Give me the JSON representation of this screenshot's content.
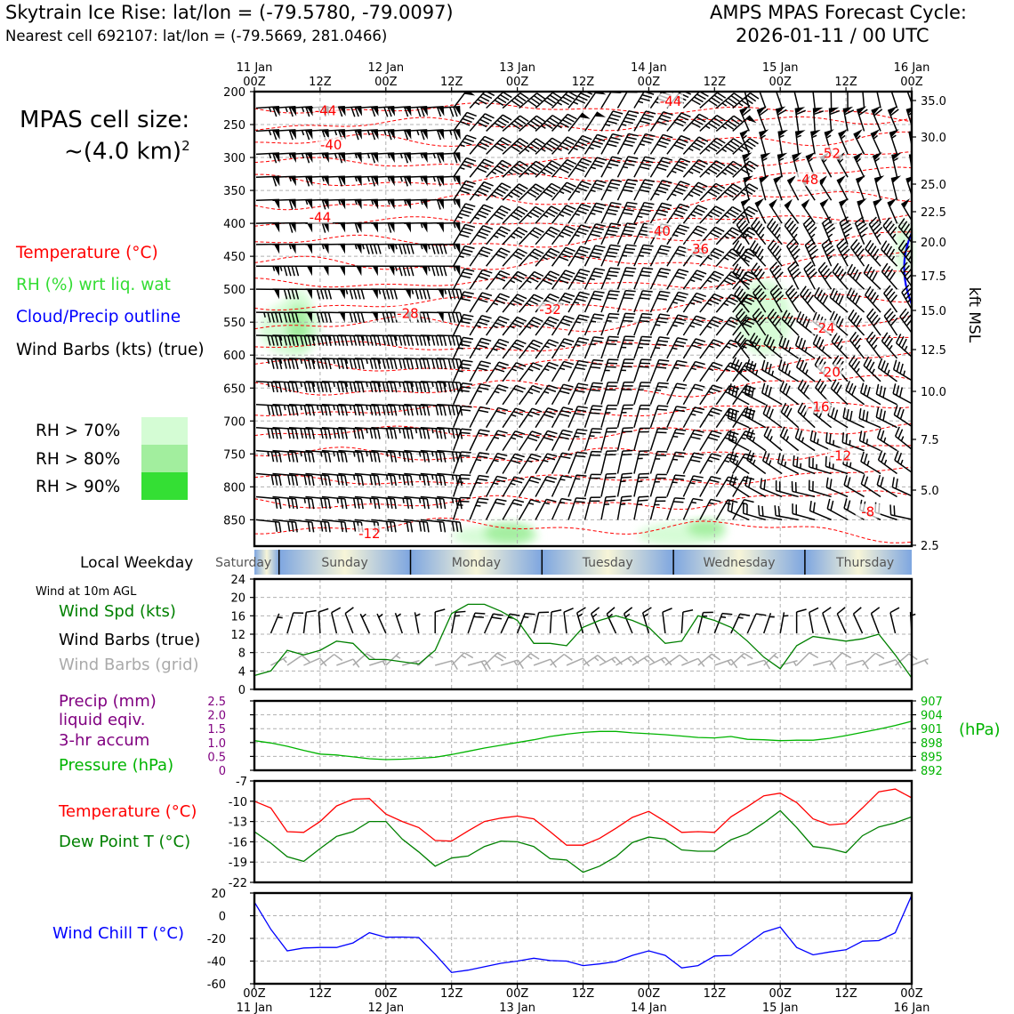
{
  "header": {
    "left_line1": "Skytrain Ice Rise: lat/lon = (-79.5780, -79.0097)",
    "left_line2": "Nearest cell 692107: lat/lon = (-79.5669, 281.0466)",
    "right_line1": "AMPS MPAS Forecast Cycle:",
    "right_line2": "2026-01-11 / 00 UTC"
  },
  "cell_size": {
    "line1": "MPAS cell size:",
    "line2": "~(4.0 km)",
    "sup": "2"
  },
  "legend": {
    "temperature": "Temperature (°C)",
    "rh": "RH (%) wrt liq. wat",
    "cloud": "Cloud/Precip outline",
    "barbs": "Wind Barbs (kts) (true)",
    "rh70": "RH > 70%",
    "rh80": "RH > 80%",
    "rh90": "RH > 90%"
  },
  "colors": {
    "temperature": "#ff0000",
    "rh_text": "#33dd33",
    "cloud": "#0000ff",
    "rh70": "#d4fcd4",
    "rh80": "#a2ee9e",
    "rh90": "#34df34",
    "wind_speed": "#008000",
    "precip": "#800080",
    "pressure": "#00b400",
    "dewpoint": "#008000",
    "windchill": "#0000ff",
    "grid_barbs": "#aaaaaa"
  },
  "time_axis": {
    "top_labels": [
      {
        "l1": "11 Jan",
        "l2": "00Z"
      },
      {
        "l1": "",
        "l2": "12Z"
      },
      {
        "l1": "12 Jan",
        "l2": "00Z"
      },
      {
        "l1": "",
        "l2": "12Z"
      },
      {
        "l1": "13 Jan",
        "l2": "00Z"
      },
      {
        "l1": "",
        "l2": "12Z"
      },
      {
        "l1": "14 Jan",
        "l2": "00Z"
      },
      {
        "l1": "",
        "l2": "12Z"
      },
      {
        "l1": "15 Jan",
        "l2": "00Z"
      },
      {
        "l1": "",
        "l2": "12Z"
      },
      {
        "l1": "16 Jan",
        "l2": "00Z"
      }
    ],
    "bottom_labels": [
      {
        "l1": "00Z",
        "l2": "11 Jan"
      },
      {
        "l1": "12Z",
        "l2": ""
      },
      {
        "l1": "00Z",
        "l2": "12 Jan"
      },
      {
        "l1": "12Z",
        "l2": ""
      },
      {
        "l1": "00Z",
        "l2": "13 Jan"
      },
      {
        "l1": "12Z",
        "l2": ""
      },
      {
        "l1": "00Z",
        "l2": "14 Jan"
      },
      {
        "l1": "12Z",
        "l2": ""
      },
      {
        "l1": "00Z",
        "l2": "15 Jan"
      },
      {
        "l1": "12Z",
        "l2": ""
      },
      {
        "l1": "00Z",
        "l2": "16 Jan"
      }
    ]
  },
  "weekday_bar": {
    "label": "Local Weekday",
    "days": [
      "Saturday",
      "Sunday",
      "Monday",
      "Tuesday",
      "Wednesday",
      "Thursday"
    ]
  },
  "wind10m": {
    "heading": "Wind at 10m AGL",
    "legend_speed": "Wind Spd (kts)",
    "legend_true": "Wind Barbs (true)",
    "legend_grid": "Wind Barbs (grid)"
  },
  "precip_panel": {
    "legend_precip": "Precip (mm)",
    "legend_liquid": "liquid eqiv.",
    "legend_accum": "3-hr accum",
    "legend_pressure": "Pressure (hPa)",
    "right_unit": "(hPa)"
  },
  "temp_panel": {
    "legend_temp": "Temperature (°C)",
    "legend_dew": "Dew Point T (°C)"
  },
  "chill_panel": {
    "legend_chill": "Wind Chill T (°C)"
  },
  "chart_data": [
    {
      "type": "contour",
      "panel": "vertical-profile",
      "x_hours": [
        0,
        120
      ],
      "y_label_right": "kft MSL",
      "y_left_ticks": [
        200,
        250,
        300,
        350,
        400,
        450,
        500,
        550,
        600,
        650,
        700,
        750,
        800,
        850
      ],
      "y_right_ticks": [
        35.0,
        30.0,
        25.0,
        22.5,
        20.0,
        17.5,
        15.0,
        12.5,
        10.0,
        7.5,
        5.0,
        2.5
      ],
      "ylim_hpa": [
        200,
        890
      ],
      "temperature_labels": [
        {
          "t": 13,
          "p": 233,
          "v": "-44"
        },
        {
          "t": 14,
          "p": 285,
          "v": "-40"
        },
        {
          "t": 12,
          "p": 395,
          "v": "-44"
        },
        {
          "t": 28,
          "p": 541,
          "v": "-28"
        },
        {
          "t": 54,
          "p": 535,
          "v": "-32"
        },
        {
          "t": 76,
          "p": 219,
          "v": "-44"
        },
        {
          "t": 74,
          "p": 416,
          "v": "-40"
        },
        {
          "t": 81,
          "p": 443,
          "v": "-36"
        },
        {
          "t": 105,
          "p": 298,
          "v": "-52"
        },
        {
          "t": 101,
          "p": 338,
          "v": "-48"
        },
        {
          "t": 104,
          "p": 563,
          "v": "-24"
        },
        {
          "t": 105,
          "p": 630,
          "v": "-20"
        },
        {
          "t": 103,
          "p": 683,
          "v": "-16"
        },
        {
          "t": 107,
          "p": 757,
          "v": "-12"
        },
        {
          "t": 112,
          "p": 842,
          "v": "-8"
        },
        {
          "t": 21,
          "p": 875,
          "v": "-12"
        }
      ],
      "rh_regions": [
        {
          "t_range": [
            1,
            12
          ],
          "p_range": [
            520,
            600
          ],
          "level": 70
        },
        {
          "t_range": [
            5,
            11
          ],
          "p_range": [
            500,
            600
          ],
          "level": 70
        },
        {
          "t_range": [
            6,
            10
          ],
          "p_range": [
            525,
            585
          ],
          "level": 80
        },
        {
          "t_range": [
            88,
            98
          ],
          "p_range": [
            485,
            600
          ],
          "level": 70
        },
        {
          "t_range": [
            36,
            52
          ],
          "p_range": [
            860,
            890
          ],
          "level": 70
        },
        {
          "t_range": [
            42,
            51
          ],
          "p_range": [
            855,
            885
          ],
          "level": 80
        },
        {
          "t_range": [
            70,
            86
          ],
          "p_range": [
            855,
            890
          ],
          "level": 70
        },
        {
          "t_range": [
            79,
            86
          ],
          "p_range": [
            850,
            875
          ],
          "level": 80
        },
        {
          "t_range": [
            117,
            120
          ],
          "p_range": [
            395,
            480
          ],
          "level": 70
        }
      ]
    },
    {
      "type": "line",
      "panel": "wind10m",
      "x_hours": [
        0,
        3,
        6,
        9,
        12,
        15,
        18,
        21,
        24,
        27,
        30,
        33,
        36,
        39,
        42,
        45,
        48,
        51,
        54,
        57,
        60,
        63,
        66,
        69,
        72,
        75,
        78,
        81,
        84,
        87,
        90,
        93,
        96,
        99,
        102,
        105,
        108,
        111,
        114,
        117,
        120
      ],
      "series": [
        {
          "name": "Wind Spd (kts)",
          "values": [
            3,
            4,
            8.5,
            7.5,
            8.5,
            10.5,
            10,
            6.5,
            6.5,
            6,
            5.5,
            8.5,
            16.5,
            18.5,
            18.5,
            17,
            15,
            10,
            10,
            9.5,
            13.5,
            15,
            16,
            15,
            13.5,
            10,
            10.5,
            16,
            15,
            13.5,
            10.5,
            7,
            4.5,
            9.5,
            11.5,
            11,
            10.5,
            11,
            12,
            7.5,
            2.5
          ]
        }
      ],
      "ylim": [
        0,
        24
      ],
      "yticks": [
        0,
        4,
        8,
        12,
        16,
        20,
        24
      ]
    },
    {
      "type": "line",
      "panel": "precip-pressure",
      "x_hours": [
        0,
        3,
        6,
        9,
        12,
        15,
        18,
        21,
        24,
        27,
        30,
        33,
        36,
        39,
        42,
        45,
        48,
        51,
        54,
        57,
        60,
        63,
        66,
        69,
        72,
        75,
        78,
        81,
        84,
        87,
        90,
        93,
        96,
        99,
        102,
        105,
        108,
        111,
        114,
        117,
        120
      ],
      "series": [
        {
          "name": "Pressure (hPa)",
          "values": [
            898.4,
            897.9,
            897.2,
            896.3,
            895.5,
            895.3,
            894.9,
            894.5,
            894.3,
            894.4,
            894.6,
            894.8,
            895.4,
            896.1,
            896.8,
            897.4,
            898.0,
            898.6,
            899.3,
            899.8,
            900.2,
            900.4,
            900.4,
            900.1,
            899.9,
            899.7,
            899.4,
            899.1,
            899.0,
            899.3,
            898.7,
            898.6,
            898.4,
            898.5,
            898.5,
            898.9,
            899.5,
            900.2,
            900.9,
            901.7,
            902.6
          ]
        }
      ],
      "left_axis": {
        "label": "Precip (mm)",
        "ylim": [
          0,
          2.5
        ],
        "yticks": [
          "0",
          "0.5",
          "1.0",
          "1.5",
          "2.0",
          "2.5"
        ]
      },
      "right_axis": {
        "label": "(hPa)",
        "ylim": [
          892,
          907
        ],
        "yticks": [
          "892",
          "895",
          "898",
          "901",
          "904",
          "907"
        ]
      }
    },
    {
      "type": "line",
      "panel": "temperature",
      "x_hours": [
        0,
        3,
        6,
        9,
        12,
        15,
        18,
        21,
        24,
        27,
        30,
        33,
        36,
        39,
        42,
        45,
        48,
        51,
        54,
        57,
        60,
        63,
        66,
        69,
        72,
        75,
        78,
        81,
        84,
        87,
        90,
        93,
        96,
        99,
        102,
        105,
        108,
        111,
        114,
        117,
        120
      ],
      "series": [
        {
          "name": "Temperature (°C)",
          "values": [
            -10,
            -11,
            -14.5,
            -14.6,
            -13,
            -10.7,
            -9.7,
            -9.6,
            -11.9,
            -13,
            -13.9,
            -15.8,
            -15.9,
            -14.4,
            -13,
            -12.5,
            -12.2,
            -12.6,
            -14.5,
            -16.5,
            -16.5,
            -15.5,
            -14,
            -12.4,
            -11.5,
            -13,
            -14.6,
            -14.5,
            -14.6,
            -12.3,
            -10.8,
            -9.2,
            -8.8,
            -10.2,
            -12.6,
            -13.5,
            -13.3,
            -11,
            -8.6,
            -8.2,
            -9.5
          ]
        },
        {
          "name": "Dew Point T (°C)",
          "values": [
            -14.5,
            -16.2,
            -18.2,
            -18.9,
            -17,
            -15.2,
            -14.5,
            -13,
            -13,
            -15.6,
            -17.5,
            -19.6,
            -18.4,
            -18.1,
            -16.7,
            -15.9,
            -16,
            -16.7,
            -18.5,
            -18.7,
            -20.5,
            -19.6,
            -18.2,
            -16.1,
            -15.3,
            -15.6,
            -17.2,
            -17.4,
            -17.4,
            -15.7,
            -14.8,
            -13.2,
            -11.4,
            -13.9,
            -16.7,
            -17,
            -17.6,
            -15.1,
            -13.8,
            -13.2,
            -12.3
          ]
        }
      ],
      "ylim": [
        -22,
        -7
      ],
      "yticks": [
        "-22",
        "-19",
        "-16",
        "-13",
        "-10",
        "-7"
      ]
    },
    {
      "type": "line",
      "panel": "wind-chill",
      "x_hours": [
        0,
        3,
        6,
        9,
        12,
        15,
        18,
        21,
        24,
        27,
        30,
        33,
        36,
        39,
        42,
        45,
        48,
        51,
        54,
        57,
        60,
        63,
        66,
        69,
        72,
        75,
        78,
        81,
        84,
        87,
        90,
        93,
        96,
        99,
        102,
        105,
        108,
        111,
        114,
        117,
        120
      ],
      "series": [
        {
          "name": "Wind Chill T (°C)",
          "values": [
            12,
            -12,
            -31,
            -28.5,
            -28,
            -28,
            -24,
            -15,
            -19,
            -18.8,
            -19.2,
            -34,
            -50,
            -48,
            -45,
            -42,
            -40,
            -37.5,
            -39.5,
            -40,
            -44,
            -42.5,
            -40.5,
            -35,
            -31,
            -35,
            -46,
            -44,
            -35.5,
            -35,
            -25,
            -14.5,
            -10,
            -28,
            -34.5,
            -32,
            -30,
            -22.5,
            -22,
            -15,
            18
          ]
        }
      ],
      "ylim": [
        -60,
        20
      ],
      "yticks": [
        "-60",
        "-40",
        "-20",
        "0",
        "20"
      ]
    }
  ]
}
